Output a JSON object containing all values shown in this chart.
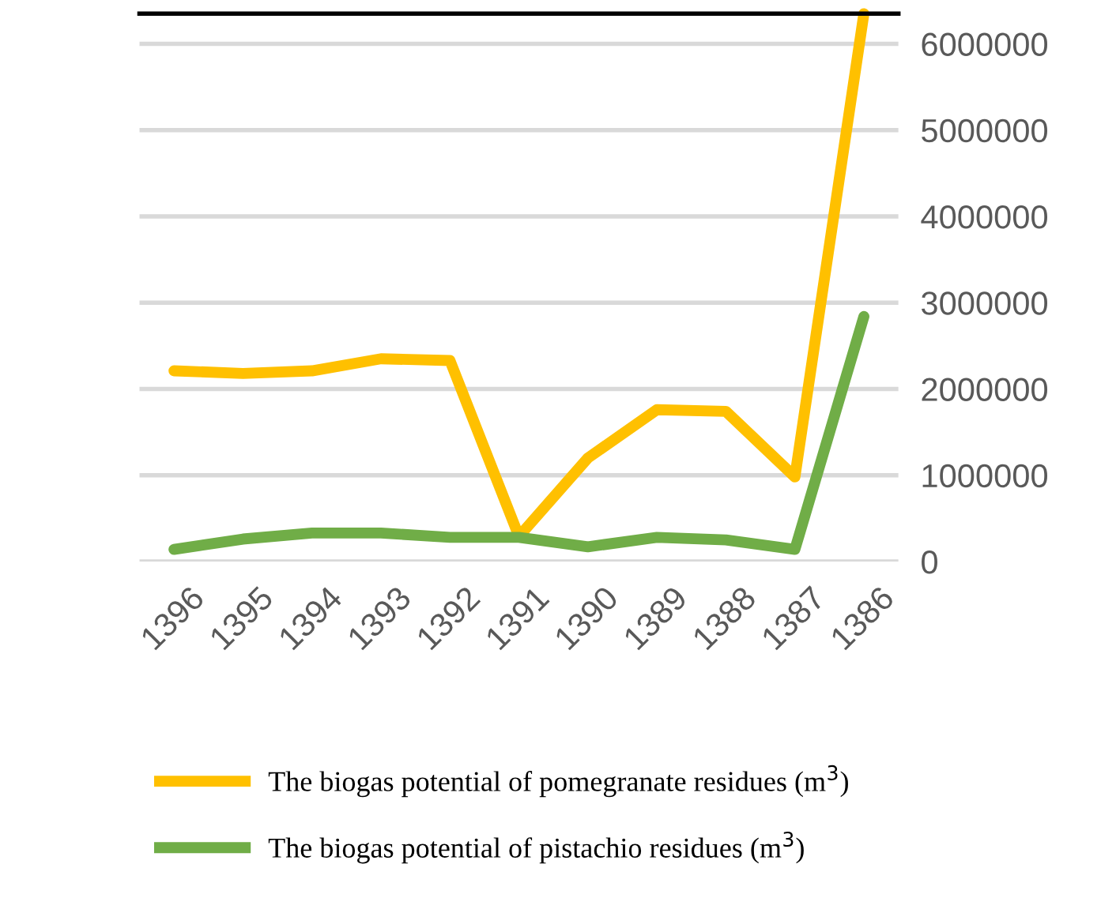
{
  "chart_data": {
    "type": "line",
    "categories": [
      "1396",
      "1395",
      "1394",
      "1393",
      "1392",
      "1391",
      "1390",
      "1389",
      "1388",
      "1387",
      "1386"
    ],
    "series": [
      {
        "name": "The biogas potential of pomegranate residues (m$^{3}$)",
        "color": "#ffc000",
        "values": [
          2210000,
          2180000,
          2210000,
          2350000,
          2330000,
          290000,
          1200000,
          1760000,
          1740000,
          980000,
          6350000
        ]
      },
      {
        "name": "The biogas potential of pistachio residues (m$^{3}$)",
        "color": "#70ad47",
        "values": [
          140000,
          260000,
          330000,
          330000,
          280000,
          280000,
          170000,
          280000,
          250000,
          140000,
          2840000
        ]
      }
    ],
    "ylim": [
      0,
      6350000
    ],
    "yticks": [
      0,
      1000000,
      2000000,
      3000000,
      4000000,
      5000000,
      6000000
    ],
    "grid": "y",
    "legend": "bottom"
  }
}
